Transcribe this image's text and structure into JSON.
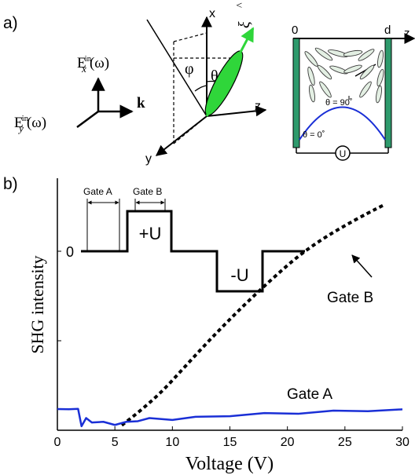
{
  "panel_a": {
    "label": "a)",
    "field_x": "E",
    "field_x_sup": "in",
    "field_x_sub": "x",
    "field_x_arg": "(ω)",
    "field_y": "E",
    "field_y_sup": "in",
    "field_y_sub": "y",
    "field_y_arg": "(ω)",
    "wavevector": "k",
    "axis_x": "x",
    "axis_y": "y",
    "axis_z": "z",
    "angle_phi": "φ",
    "angle_theta": "θ",
    "xi": "ξ",
    "xi_hat": "^",
    "cell_left": "0",
    "cell_right": "d",
    "cell_z": "z",
    "theta_90": "θ = 90˚",
    "theta_0": "θ = 0˚",
    "voltage_source": "U"
  },
  "panel_b": {
    "label": "b)",
    "gate_a": "Gate A",
    "gate_b": "Gate B",
    "pulse_zero": "0",
    "pulse_plus": "+U",
    "pulse_minus": "-U",
    "annotation_gate_b": "Gate  B",
    "annotation_gate_a": "Gate   A"
  },
  "chart_data": {
    "type": "line",
    "title": "",
    "xlabel": "Voltage (V)",
    "ylabel": "SHG intensity",
    "xlim": [
      0,
      30
    ],
    "xticks": [
      "0",
      "5",
      "10",
      "15",
      "20",
      "25",
      "30"
    ],
    "yticks": [],
    "grid": false,
    "series": [
      {
        "name": "Gate B",
        "style": "dotted",
        "color": "#000000",
        "x": [
          5.6,
          7,
          9,
          11,
          13,
          15,
          17,
          19,
          21,
          23,
          25,
          27,
          28.5
        ],
        "y": [
          0.02,
          0.07,
          0.15,
          0.25,
          0.35,
          0.445,
          0.535,
          0.62,
          0.7,
          0.765,
          0.82,
          0.87,
          0.905
        ]
      },
      {
        "name": "Gate A",
        "style": "solid",
        "color": "#1a2fd6",
        "x": [
          0,
          1,
          1.8,
          2.1,
          2.5,
          3,
          4,
          5,
          6,
          7,
          8,
          10,
          12,
          15,
          18,
          21,
          24,
          27,
          30
        ],
        "y": [
          0.085,
          0.088,
          0.082,
          0.02,
          0.045,
          0.035,
          0.03,
          0.025,
          0.03,
          0.04,
          0.045,
          0.045,
          0.05,
          0.06,
          0.065,
          0.07,
          0.075,
          0.08,
          0.08
        ]
      }
    ]
  },
  "colors": {
    "blue_curve": "#1a2fd6",
    "green_vector": "#2fd63a",
    "cell_plate": "#2e9a6c",
    "molecule_fill": "#e3efe3"
  }
}
